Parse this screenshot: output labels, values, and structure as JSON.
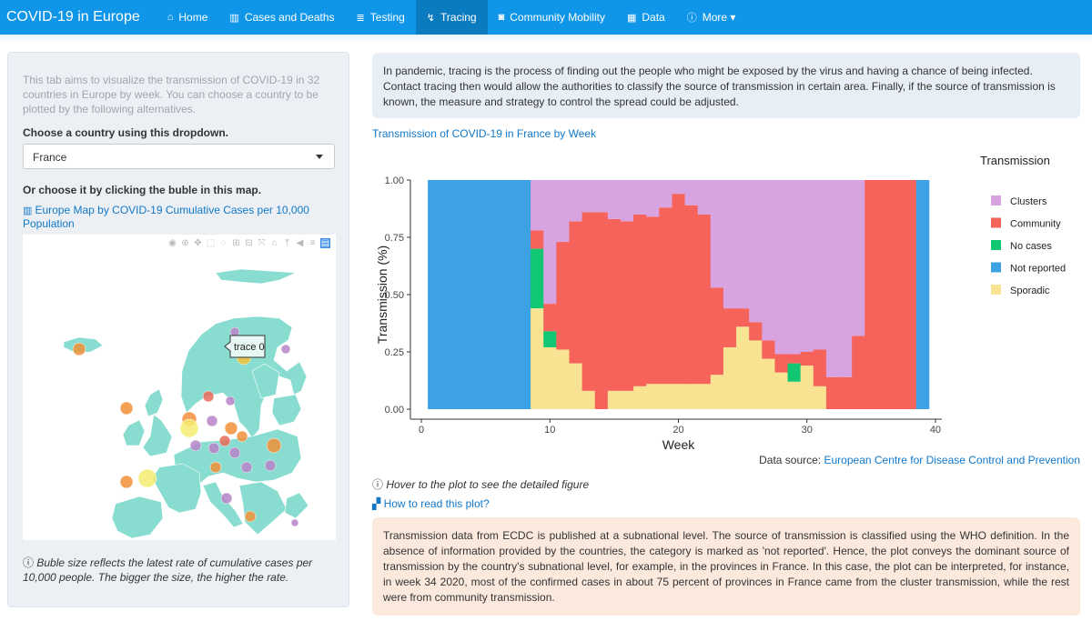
{
  "app_title": "COVID-19 in Europe",
  "nav": [
    {
      "icon": "home-icon",
      "glyph": "⌂",
      "label": "Home"
    },
    {
      "icon": "chart-icon",
      "glyph": "▥",
      "label": "Cases and Deaths"
    },
    {
      "icon": "vial-icon",
      "glyph": "≣",
      "label": "Testing"
    },
    {
      "icon": "route-icon",
      "glyph": "↯",
      "label": "Tracing",
      "active": true
    },
    {
      "icon": "car-icon",
      "glyph": "◙",
      "label": "Community Mobility"
    },
    {
      "icon": "table-icon",
      "glyph": "▦",
      "label": "Data"
    },
    {
      "icon": "info-icon",
      "glyph": "ⓘ",
      "label": "More ▾"
    }
  ],
  "sidebar": {
    "description": "This tab aims to visualize the transmission of COVID-19 in 32 countries in Europe by week. You can choose a country to be plotted by the following alternatives.",
    "dropdown_heading": "Choose a country using this dropdown.",
    "dropdown_value": "France",
    "map_heading": "Or choose it by clicking the buble in this map.",
    "map_link": "Europe Map by COVID-19 Cumulative Cases per 10,000 Population",
    "map_tooltip": "trace 0",
    "note": "Buble size reflects the latest rate of cumulative cases per 10,000 people. The bigger the size, the higher the rate."
  },
  "intro": "In pandemic, tracing is the process of finding out the people who might be exposed by the virus and having a chance of being infected. Contact tracing then would allow the authorities to classify the source of transmission in certain area. Finally, if the source of transmission is known, the measure and strategy to control the spread could be adjusted.",
  "chart_title": "Transmission of COVID-19 in France by Week",
  "source_label": "Data source:",
  "source_link": "European Centre for Disease Control and Prevention",
  "hover_note": "Hover to the plot to see the detailed figure",
  "how_link": "How to read this plot?",
  "explanation": "Transmission data from ECDC is published at a subnational level. The source of transmission is classified using the WHO definition. In the absence of information provided by the countries, the category is marked as 'not reported'. Hence, the plot conveys the dominant source of transmission by the country's subnational level, for example, in the provinces in France. In this case, the plot can be interpreted, for instance, in week 34 2020, most of the confirmed cases in about 75 percent of provinces in France came from the cluster transmission, while the rest were from community transmission.",
  "colors": {
    "Clusters": "#d7a3e0",
    "Community": "#f6635b",
    "No cases": "#12c774",
    "Not reported": "#3ca2e4",
    "Sporadic": "#f7e391",
    "navbar": "#0f96e8",
    "link": "#1178c8"
  },
  "chart_data": {
    "type": "bar",
    "stacked": true,
    "title": "",
    "xlabel": "Week",
    "ylabel": "Transmission (%)",
    "xlim": [
      -0.5,
      40.5
    ],
    "ylim": [
      0,
      1
    ],
    "xticks": [
      0,
      10,
      20,
      30,
      40
    ],
    "yticks": [
      "0.00",
      "0.25",
      "0.50",
      "0.75",
      "1.00"
    ],
    "legend_title": "Transmission",
    "legend_position": "right",
    "stack_order": [
      "Sporadic",
      "No cases",
      "Not reported",
      "Community",
      "Clusters"
    ],
    "x": [
      1,
      2,
      3,
      4,
      5,
      6,
      7,
      8,
      9,
      10,
      11,
      12,
      13,
      14,
      15,
      16,
      17,
      18,
      19,
      20,
      21,
      22,
      23,
      24,
      25,
      26,
      27,
      28,
      29,
      30,
      31,
      32,
      33,
      34,
      35,
      36,
      37,
      38,
      39
    ],
    "series": [
      {
        "name": "Sporadic",
        "values": [
          0,
          0,
          0,
          0,
          0,
          0,
          0,
          0,
          0.44,
          0.27,
          0.26,
          0.2,
          0.08,
          0,
          0.08,
          0.08,
          0.1,
          0.11,
          0.11,
          0.11,
          0.11,
          0.11,
          0.15,
          0.27,
          0.36,
          0.3,
          0.22,
          0.16,
          0.12,
          0.19,
          0.1,
          0,
          0,
          0,
          0,
          0,
          0,
          0,
          0
        ]
      },
      {
        "name": "No cases",
        "values": [
          0,
          0,
          0,
          0,
          0,
          0,
          0,
          0,
          0.26,
          0.07,
          0,
          0,
          0,
          0,
          0,
          0,
          0,
          0,
          0,
          0,
          0,
          0,
          0,
          0,
          0,
          0,
          0,
          0,
          0.08,
          0,
          0,
          0,
          0,
          0,
          0,
          0,
          0,
          0,
          0
        ]
      },
      {
        "name": "Not reported",
        "values": [
          1,
          1,
          1,
          1,
          1,
          1,
          1,
          1,
          0,
          0,
          0,
          0,
          0,
          0,
          0,
          0,
          0,
          0,
          0,
          0,
          0,
          0,
          0,
          0,
          0,
          0,
          0,
          0,
          0,
          0,
          0,
          0,
          0,
          0,
          0,
          0,
          0,
          0,
          1
        ]
      },
      {
        "name": "Community",
        "values": [
          0,
          0,
          0,
          0,
          0,
          0,
          0,
          0,
          0.08,
          0.12,
          0.47,
          0.62,
          0.78,
          0.86,
          0.75,
          0.74,
          0.75,
          0.73,
          0.77,
          0.83,
          0.78,
          0.74,
          0.38,
          0.17,
          0.08,
          0.08,
          0.08,
          0.08,
          0.04,
          0.06,
          0.16,
          0.14,
          0.14,
          0.32,
          1,
          1,
          1,
          1,
          0
        ]
      },
      {
        "name": "Clusters",
        "values": [
          0,
          0,
          0,
          0,
          0,
          0,
          0,
          0,
          0.22,
          0.54,
          0.27,
          0.18,
          0.14,
          0.14,
          0.17,
          0.18,
          0.15,
          0.16,
          0.12,
          0.06,
          0.11,
          0.15,
          0.47,
          0.56,
          0.56,
          0.62,
          0.7,
          0.76,
          0.76,
          0.75,
          0.74,
          0.86,
          0.86,
          0.68,
          0,
          0,
          0,
          0,
          0
        ]
      }
    ]
  }
}
